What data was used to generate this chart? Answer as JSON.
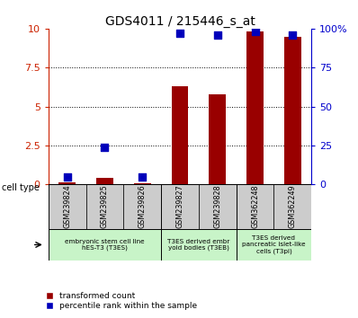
{
  "title": "GDS4011 / 215446_s_at",
  "samples": [
    "GSM239824",
    "GSM239825",
    "GSM239826",
    "GSM239827",
    "GSM239828",
    "GSM362248",
    "GSM362249"
  ],
  "transformed_count": [
    0.15,
    0.4,
    0.1,
    6.3,
    5.8,
    9.8,
    9.5
  ],
  "percentile_rank_scaled": [
    0.5,
    2.4,
    0.5,
    9.7,
    9.6,
    9.8,
    9.6
  ],
  "ylim": [
    0,
    10
  ],
  "yticks_left": [
    0,
    2.5,
    5,
    7.5,
    10
  ],
  "ytick_labels_left": [
    "0",
    "2.5",
    "5",
    "7.5",
    "10"
  ],
  "ytick_labels_right": [
    "0",
    "25",
    "50",
    "75",
    "100%"
  ],
  "cell_types": [
    {
      "label": "embryonic stem cell line\nhES-T3 (T3ES)",
      "span": [
        0,
        3
      ],
      "color": "#c8f4c8"
    },
    {
      "label": "T3ES derived embr\nyoid bodies (T3EB)",
      "span": [
        3,
        5
      ],
      "color": "#c8f4c8"
    },
    {
      "label": "T3ES derived\npancreatic islet-like\ncells (T3pi)",
      "span": [
        5,
        7
      ],
      "color": "#c8f4c8"
    }
  ],
  "bar_color": "#990000",
  "dot_color": "#0000bb",
  "bar_width": 0.45,
  "dot_size": 28,
  "left_axis_color": "#cc2200",
  "right_axis_color": "#0000cc",
  "background_color": "#ffffff",
  "sample_box_color": "#cccccc"
}
